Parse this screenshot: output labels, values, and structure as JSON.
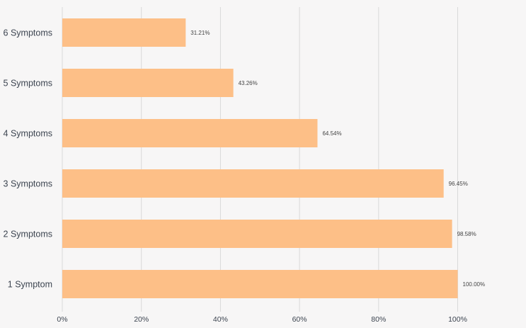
{
  "chart_data": {
    "type": "bar",
    "orientation": "horizontal",
    "categories": [
      "1 Symptom",
      "2 Symptoms",
      "3 Symptoms",
      "4 Symptoms",
      "5 Symptoms",
      "6 Symptoms"
    ],
    "values": [
      100.0,
      98.58,
      96.45,
      64.54,
      43.26,
      31.21
    ],
    "data_labels": [
      "100.00%",
      "98.58%",
      "96.45%",
      "64.54%",
      "43.26%",
      "31.21%"
    ],
    "x_ticks": [
      "0%",
      "20%",
      "40%",
      "60%",
      "80%",
      "100%"
    ],
    "xlim": [
      0,
      100
    ],
    "grid": true,
    "title": "",
    "xlabel": "",
    "ylabel": "",
    "bar_color": "#fdbf87",
    "background": "#f7f6f6"
  }
}
